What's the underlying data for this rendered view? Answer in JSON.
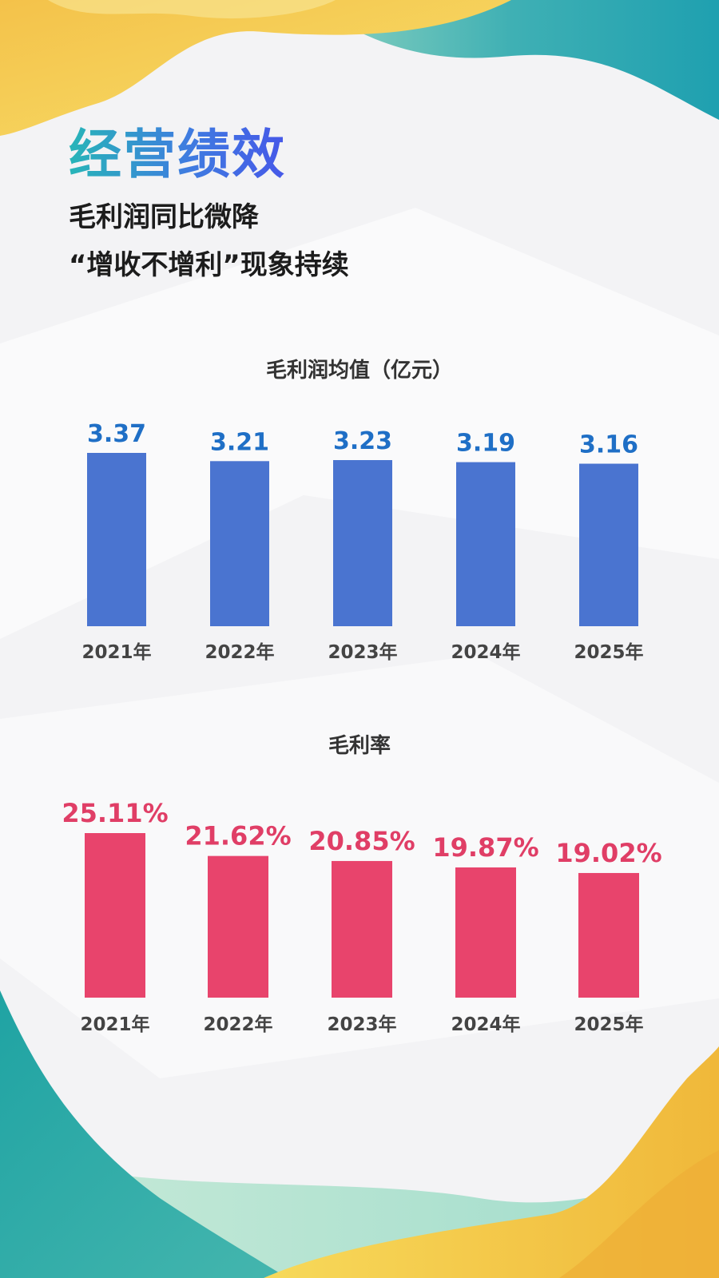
{
  "header": {
    "title": "经营绩效",
    "subtitle_line1": "毛利润同比微降",
    "subtitle_line2": "“增收不增利”现象持续"
  },
  "colors": {
    "bar_profit": "#4a74d0",
    "label_profit": "#1f6fc6",
    "bar_margin": "#e8446c",
    "label_margin": "#e03e66"
  },
  "chart_data": [
    {
      "type": "bar",
      "title": "毛利润均值（亿元）",
      "categories": [
        "2021年",
        "2022年",
        "2023年",
        "2024年",
        "2025年"
      ],
      "values": [
        3.37,
        3.21,
        3.23,
        3.19,
        3.16
      ],
      "data_labels": [
        "3.37",
        "3.21",
        "3.23",
        "3.19",
        "3.16"
      ],
      "ylim": [
        0,
        3.37
      ],
      "grid": false
    },
    {
      "type": "bar",
      "title": "毛利率",
      "categories": [
        "2021年",
        "2022年",
        "2023年",
        "2024年",
        "2025年"
      ],
      "values": [
        25.11,
        21.62,
        20.85,
        19.87,
        19.02
      ],
      "data_labels": [
        "25.11%",
        "21.62%",
        "20.85%",
        "19.87%",
        "19.02%"
      ],
      "ylim": [
        0,
        25.11
      ],
      "grid": false
    }
  ]
}
